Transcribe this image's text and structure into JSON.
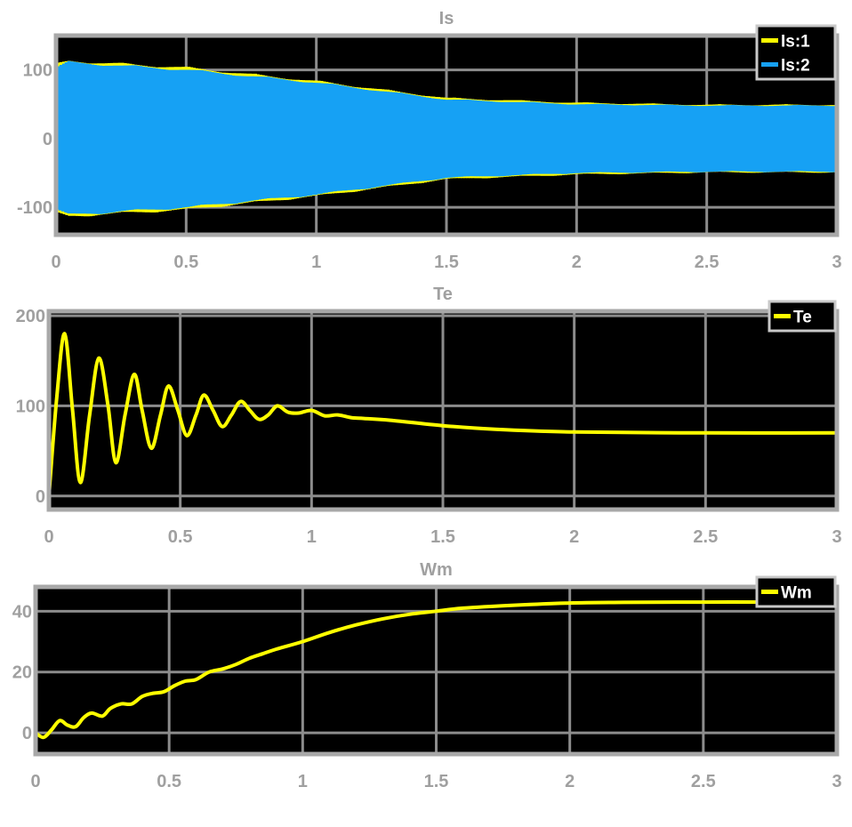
{
  "chart_data": [
    {
      "type": "line",
      "title": "Is",
      "xlim": [
        0,
        3
      ],
      "ylim": [
        -140,
        150
      ],
      "xticks": [
        0,
        0.5,
        1,
        1.5,
        2,
        2.5,
        3
      ],
      "xtick_labels": [
        "0",
        "0.5",
        "1",
        "1.5",
        "2",
        "2.5",
        "3"
      ],
      "yticks": [
        -100,
        0,
        100
      ],
      "ytick_labels": [
        "-100",
        "0",
        "100"
      ],
      "grid": true,
      "legend": "top-right",
      "background": "#000000",
      "series": [
        {
          "name": "Is:1",
          "color": "#ffff00",
          "kind": "oscillating",
          "envelope_x": [
            0,
            0.05,
            0.5,
            1.0,
            1.5,
            2.0,
            2.5,
            3.0
          ],
          "envelope_amplitude": [
            110,
            115,
            105,
            85,
            60,
            53,
            50,
            50
          ]
        },
        {
          "name": "Is:2",
          "color": "#16a1f4",
          "kind": "oscillating",
          "envelope_x": [
            0,
            0.05,
            0.5,
            1.0,
            1.5,
            2.0,
            2.5,
            3.0
          ],
          "envelope_amplitude": [
            105,
            113,
            102,
            83,
            58,
            51,
            49,
            49
          ]
        }
      ]
    },
    {
      "type": "line",
      "title": "Te",
      "xlim": [
        0,
        3
      ],
      "ylim": [
        -15,
        205
      ],
      "xticks": [
        0,
        0.5,
        1,
        1.5,
        2,
        2.5,
        3
      ],
      "xtick_labels": [
        "0",
        "0.5",
        "1",
        "1.5",
        "2",
        "2.5",
        "3"
      ],
      "yticks": [
        0,
        100,
        200
      ],
      "ytick_labels": [
        "0",
        "100",
        "200"
      ],
      "grid": true,
      "legend": "top-right",
      "background": "#000000",
      "series": [
        {
          "name": "Te",
          "color": "#ffff00",
          "x": [
            0,
            0.03,
            0.06,
            0.09,
            0.12,
            0.155,
            0.19,
            0.225,
            0.255,
            0.29,
            0.325,
            0.355,
            0.39,
            0.425,
            0.455,
            0.49,
            0.525,
            0.56,
            0.59,
            0.625,
            0.66,
            0.695,
            0.73,
            0.765,
            0.8,
            0.835,
            0.87,
            0.91,
            0.95,
            1.0,
            1.05,
            1.1,
            1.15,
            1.2,
            1.3,
            1.5,
            1.7,
            2.0,
            2.5,
            3.0
          ],
          "y": [
            0,
            110,
            180,
            95,
            15,
            90,
            153,
            100,
            37,
            90,
            135,
            95,
            53,
            90,
            122,
            96,
            67,
            90,
            112,
            95,
            77,
            90,
            105,
            95,
            85,
            90,
            100,
            93,
            92,
            95,
            89,
            90,
            87,
            86,
            84,
            78,
            74,
            71,
            70,
            70
          ]
        }
      ]
    },
    {
      "type": "line",
      "title": "Wm",
      "xlim": [
        0,
        3
      ],
      "ylim": [
        -7,
        48
      ],
      "xticks": [
        0,
        0.5,
        1,
        1.5,
        2,
        2.5,
        3
      ],
      "xtick_labels": [
        "0",
        "0.5",
        "1",
        "1.5",
        "2",
        "2.5",
        "3"
      ],
      "yticks": [
        0,
        20,
        40
      ],
      "ytick_labels": [
        "0",
        "20",
        "40"
      ],
      "grid": true,
      "legend": "top-right",
      "background": "#000000",
      "series": [
        {
          "name": "Wm",
          "color": "#ffff00",
          "x": [
            0,
            0.03,
            0.06,
            0.09,
            0.12,
            0.15,
            0.18,
            0.21,
            0.25,
            0.28,
            0.32,
            0.36,
            0.4,
            0.44,
            0.48,
            0.52,
            0.56,
            0.6,
            0.65,
            0.7,
            0.75,
            0.8,
            0.85,
            0.9,
            1.0,
            1.1,
            1.2,
            1.3,
            1.4,
            1.5,
            1.6,
            1.8,
            2.0,
            2.2,
            2.5,
            2.8,
            3.0
          ],
          "y": [
            0,
            -1.5,
            1,
            4,
            2.5,
            2,
            5,
            6.5,
            5.5,
            8,
            9.5,
            9.5,
            12,
            13,
            13.5,
            15.5,
            17,
            17.5,
            20,
            21,
            22.5,
            24.5,
            26,
            27.5,
            30,
            33,
            35.5,
            37.5,
            39,
            40,
            41,
            42,
            42.7,
            42.9,
            43,
            43,
            43
          ]
        }
      ]
    }
  ]
}
